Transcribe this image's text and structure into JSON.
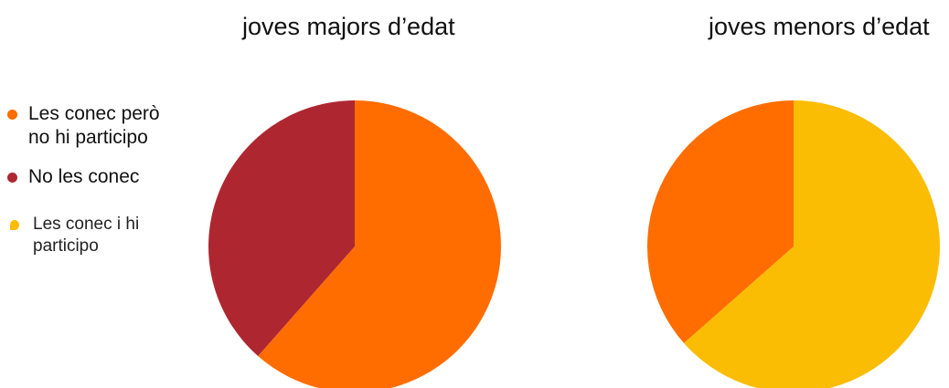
{
  "chart_data": [
    {
      "type": "pie",
      "title": "joves majors d’edat",
      "slices": [
        {
          "label": "Les conec però no hi participo",
          "value": 61.5,
          "color": "#ff6d00"
        },
        {
          "label": "No les conec",
          "value": 38.5,
          "color": "#ae2730"
        }
      ]
    },
    {
      "type": "pie",
      "title": "joves menors d’edat",
      "slices": [
        {
          "label": "Les conec i hi participo",
          "value": 63.5,
          "color": "#fbbc04"
        },
        {
          "label": "Les conec però no hi participo",
          "value": 36.5,
          "color": "#ff6d00"
        }
      ]
    }
  ],
  "legend": {
    "placement": "left",
    "items": [
      {
        "lines": [
          "Les conec però",
          "no hi participo"
        ],
        "color": "#ff6d00"
      },
      {
        "lines": [
          "No les conec"
        ],
        "color": "#ae2730"
      },
      {
        "lines": [
          "Les conec i hi",
          "participo"
        ],
        "color": "#fbbc04"
      }
    ]
  }
}
